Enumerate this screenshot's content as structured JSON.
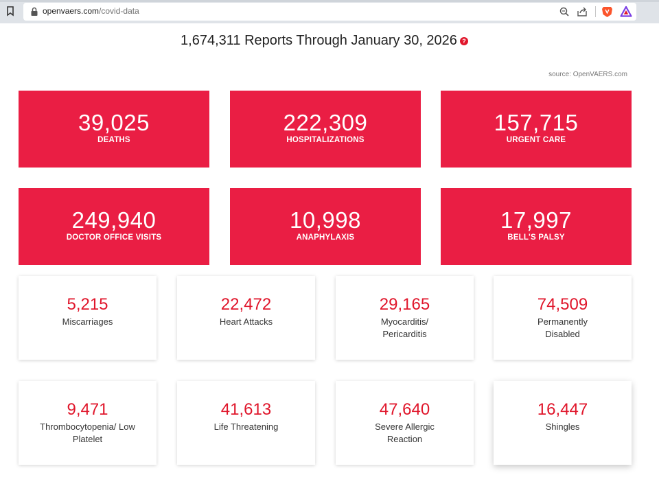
{
  "browser": {
    "url_host": "openvaers.com",
    "url_path": "/covid-data"
  },
  "page": {
    "heading": "1,674,311 Reports Through January 30, 2026",
    "help_glyph": "?",
    "source": "source: OpenVAERS.com"
  },
  "primary_stats": [
    {
      "value": "39,025",
      "label": "DEATHS"
    },
    {
      "value": "222,309",
      "label": "HOSPITALIZATIONS"
    },
    {
      "value": "157,715",
      "label": "URGENT CARE"
    },
    {
      "value": "249,940",
      "label": "DOCTOR OFFICE VISITS"
    },
    {
      "value": "10,998",
      "label": "ANAPHYLAXIS"
    },
    {
      "value": "17,997",
      "label": "BELL'S PALSY"
    }
  ],
  "secondary_stats": [
    {
      "value": "5,215",
      "label": "Miscarriages"
    },
    {
      "value": "22,472",
      "label": "Heart Attacks"
    },
    {
      "value": "29,165",
      "label": "Myocarditis/ Pericarditis"
    },
    {
      "value": "74,509",
      "label": "Permanently Disabled"
    },
    {
      "value": "9,471",
      "label": "Thrombocytopenia/ Low Platelet"
    },
    {
      "value": "41,613",
      "label": "Life Threatening"
    },
    {
      "value": "47,640",
      "label": "Severe Allergic Reaction"
    },
    {
      "value": "16,447",
      "label": "Shingles"
    }
  ],
  "colors": {
    "accent_red": "#ea1e44",
    "number_red": "#e0162b"
  }
}
